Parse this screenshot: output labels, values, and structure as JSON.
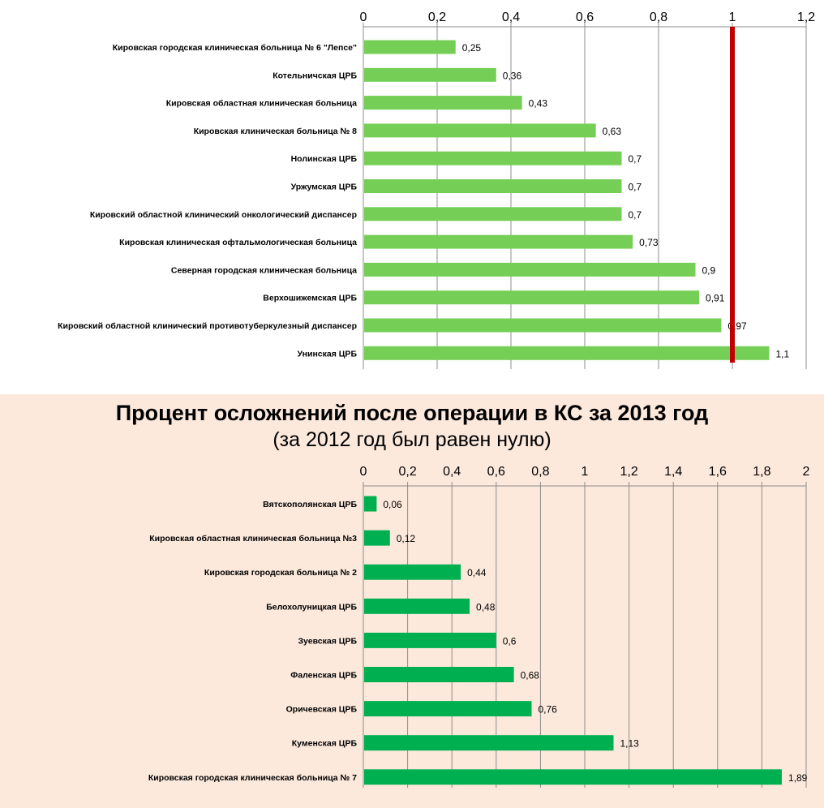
{
  "chart_data": [
    {
      "type": "bar",
      "orientation": "horizontal",
      "title": "",
      "categories": [
        "Кировская городская клиническая больница № 6 \"Лепсе\"",
        "Котельничская ЦРБ",
        "Кировская областная клиническая больница",
        "Кировская клиническая больница № 8",
        "Нолинская ЦРБ",
        "Уржумская ЦРБ",
        "Кировский областной клинический онкологический диспансер",
        "Кировская клиническая офтальмологическая больница",
        "Северная городская клиническая больница",
        "Верхошижемская ЦРБ",
        "Кировский областной клинический противотуберкулезный диспансер",
        "Унинская ЦРБ"
      ],
      "values": [
        0.25,
        0.36,
        0.43,
        0.63,
        0.7,
        0.7,
        0.7,
        0.73,
        0.9,
        0.91,
        0.97,
        1.1
      ],
      "data_labels": [
        "0,25",
        "0,36",
        "0,43",
        "0,63",
        "0,7",
        "0,7",
        "0,7",
        "0,73",
        "0,9",
        "0,91",
        "0,97",
        "1,1"
      ],
      "xlim": [
        0,
        1.2
      ],
      "ticks": [
        0,
        0.2,
        0.4,
        0.6,
        0.8,
        1,
        1.2
      ],
      "tick_labels": [
        "0",
        "0,2",
        "0,4",
        "0,6",
        "0,8",
        "1",
        "1,2"
      ],
      "axis_position": "top",
      "grid": true,
      "bar_color": "#75cf56",
      "reference_line": {
        "value": 1,
        "color": "#c00000"
      }
    },
    {
      "type": "bar",
      "orientation": "horizontal",
      "title": "Процент осложнений после операции в КС за 2013 год",
      "subtitle": "(за 2012 год был равен нулю)",
      "categories": [
        "Вятскополянская ЦРБ",
        "Кировская областная клиническая больница №3",
        "Кировская городская больница № 2",
        "Белохолуницкая ЦРБ",
        "Зуевская ЦРБ",
        "Фаленская ЦРБ",
        "Оричевская ЦРБ",
        "Куменская ЦРБ",
        "Кировская городская клиническая больница № 7"
      ],
      "values": [
        0.06,
        0.12,
        0.44,
        0.48,
        0.6,
        0.68,
        0.76,
        1.13,
        1.89
      ],
      "data_labels": [
        "0,06",
        "0,12",
        "0,44",
        "0,48",
        "0,6",
        "0,68",
        "0,76",
        "1,13",
        "1,89"
      ],
      "xlim": [
        0,
        2
      ],
      "ticks": [
        0,
        0.2,
        0.4,
        0.6,
        0.8,
        1,
        1.2,
        1.4,
        1.6,
        1.8,
        2
      ],
      "tick_labels": [
        "0",
        "0,2",
        "0,4",
        "0,6",
        "0,8",
        "1",
        "1,2",
        "1,4",
        "1,6",
        "1,8",
        "2"
      ],
      "axis_position": "top",
      "grid": true,
      "bar_color": "#00b050"
    }
  ]
}
